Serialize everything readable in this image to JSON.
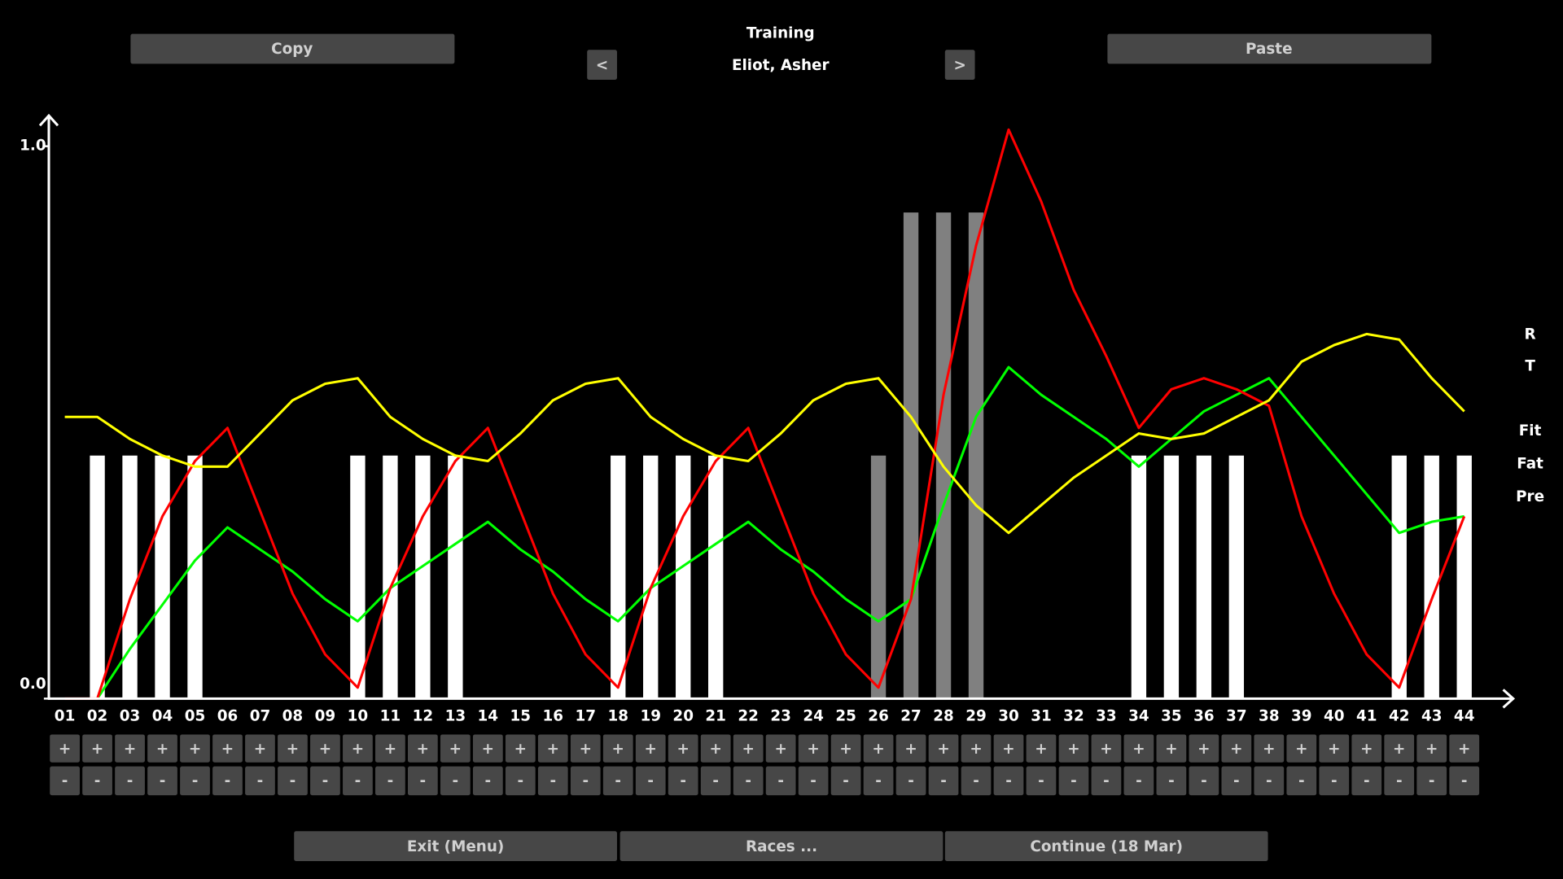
{
  "header": {
    "title": "Training",
    "rider": "Eliot, Asher",
    "prev": "<",
    "next": ">",
    "copy": "Copy",
    "paste": "Paste"
  },
  "controls": {
    "plus": "+",
    "minus": "-"
  },
  "footer": {
    "exit": "Exit (Menu)",
    "races": "Races ...",
    "continue": "Continue (18 Mar)"
  },
  "chart_data": {
    "type": "combo",
    "categories": [
      "01",
      "02",
      "03",
      "04",
      "05",
      "06",
      "07",
      "08",
      "09",
      "10",
      "11",
      "12",
      "13",
      "14",
      "15",
      "16",
      "17",
      "18",
      "19",
      "20",
      "21",
      "22",
      "23",
      "24",
      "25",
      "26",
      "27",
      "28",
      "29",
      "30",
      "31",
      "32",
      "33",
      "34",
      "35",
      "36",
      "37",
      "38",
      "39",
      "40",
      "41",
      "42",
      "43",
      "44"
    ],
    "ylim": [
      0,
      1.05
    ],
    "yticks": [
      {
        "value": 0,
        "label": "0.0"
      },
      {
        "value": 1,
        "label": "1.0"
      }
    ],
    "series": [
      {
        "name": "R",
        "kind": "bar",
        "color": "#808080",
        "values": [
          null,
          null,
          null,
          null,
          null,
          null,
          null,
          null,
          null,
          null,
          null,
          null,
          null,
          null,
          null,
          null,
          null,
          null,
          null,
          null,
          null,
          null,
          null,
          null,
          null,
          0.44,
          0.88,
          0.88,
          0.88,
          null,
          null,
          null,
          null,
          null,
          null,
          null,
          null,
          null,
          null,
          null,
          null,
          null,
          null,
          null
        ]
      },
      {
        "name": "T",
        "kind": "bar",
        "color": "#ffffff",
        "values": [
          null,
          0.44,
          0.44,
          0.44,
          0.44,
          null,
          null,
          null,
          null,
          0.44,
          0.44,
          0.44,
          0.44,
          null,
          null,
          null,
          null,
          0.44,
          0.44,
          0.44,
          0.44,
          null,
          null,
          null,
          null,
          null,
          null,
          null,
          null,
          null,
          null,
          null,
          null,
          0.44,
          0.44,
          0.44,
          0.44,
          null,
          null,
          null,
          null,
          0.44,
          0.44,
          0.44
        ]
      },
      {
        "name": "Fit",
        "kind": "line",
        "color": "#00ff00",
        "values": [
          null,
          0,
          0.09,
          0.17,
          0.25,
          0.31,
          0.27,
          0.23,
          0.18,
          0.14,
          0.2,
          0.24,
          0.28,
          0.32,
          0.27,
          0.23,
          0.18,
          0.14,
          0.2,
          0.24,
          0.28,
          0.32,
          0.27,
          0.23,
          0.18,
          0.14,
          0.18,
          0.35,
          0.51,
          0.6,
          0.55,
          0.51,
          0.47,
          0.42,
          0.47,
          0.52,
          0.55,
          0.58,
          0.51,
          0.44,
          0.37,
          0.3,
          0.32,
          0.33
        ]
      },
      {
        "name": "Fat",
        "kind": "line",
        "color": "#ff0000",
        "values": [
          0,
          0,
          0.18,
          0.33,
          0.43,
          0.49,
          0.34,
          0.19,
          0.08,
          0.02,
          0.2,
          0.33,
          0.43,
          0.49,
          0.34,
          0.19,
          0.08,
          0.02,
          0.2,
          0.33,
          0.43,
          0.49,
          0.34,
          0.19,
          0.08,
          0.02,
          0.18,
          0.55,
          0.82,
          1.03,
          0.9,
          0.74,
          0.62,
          0.49,
          0.56,
          0.58,
          0.56,
          0.53,
          0.33,
          0.19,
          0.08,
          0.02,
          0.18,
          0.33
        ]
      },
      {
        "name": "Pre",
        "kind": "line",
        "color": "#ffff00",
        "values": [
          0.51,
          0.51,
          0.47,
          0.44,
          0.42,
          0.42,
          0.48,
          0.54,
          0.57,
          0.58,
          0.51,
          0.47,
          0.44,
          0.43,
          0.48,
          0.54,
          0.57,
          0.58,
          0.51,
          0.47,
          0.44,
          0.43,
          0.48,
          0.54,
          0.57,
          0.58,
          0.51,
          0.42,
          0.35,
          0.3,
          0.35,
          0.4,
          0.44,
          0.48,
          0.47,
          0.48,
          0.51,
          0.54,
          0.61,
          0.64,
          0.66,
          0.65,
          0.58,
          0.52
        ]
      }
    ]
  }
}
